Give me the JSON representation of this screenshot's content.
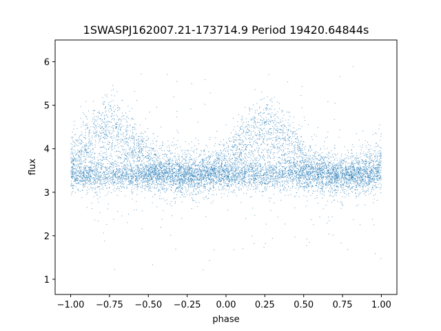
{
  "chart_data": {
    "type": "scatter",
    "title": "1SWASPJ162007.21-173714.9 Period 19420.64844s",
    "xlabel": "phase",
    "ylabel": "flux",
    "xlim": [
      -1.1,
      1.1
    ],
    "ylim": [
      0.65,
      6.5
    ],
    "x_ticks": [
      -1.0,
      -0.75,
      -0.5,
      -0.25,
      0.0,
      0.25,
      0.5,
      0.75,
      1.0
    ],
    "x_tick_labels": [
      "−1.00",
      "−0.75",
      "−0.50",
      "−0.25",
      "0.00",
      "0.25",
      "0.50",
      "0.75",
      "1.00"
    ],
    "y_ticks": [
      1,
      2,
      3,
      4,
      5,
      6
    ],
    "y_tick_labels": [
      "1",
      "2",
      "3",
      "4",
      "5",
      "6"
    ],
    "grid": false,
    "series": [
      {
        "color": "#1f77b4",
        "marker": "dot",
        "x_range": [
          -1.0,
          1.0
        ],
        "baseline_flux": 3.4,
        "peak_flux": 4.9,
        "peak_phases": [
          -0.75,
          0.25
        ],
        "min_flux": 0.9,
        "max_flux": 6.2
      }
    ]
  }
}
